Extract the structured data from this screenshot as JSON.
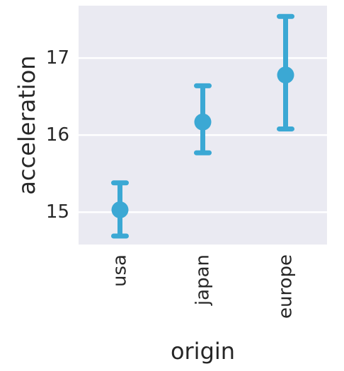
{
  "chart_data": {
    "type": "pointplot",
    "xlabel": "origin",
    "ylabel": "acceleration",
    "categories": [
      "usa",
      "japan",
      "europe"
    ],
    "series": [
      {
        "values": [
          15.03,
          16.17,
          16.78
        ],
        "ci_low": [
          14.69,
          15.77,
          16.08
        ],
        "ci_high": [
          15.38,
          16.64,
          17.54
        ]
      }
    ],
    "ylim": [
      14.58,
      17.68
    ],
    "yticks": [
      15,
      16,
      17
    ],
    "ytick_labels": [
      "15",
      "16",
      "17"
    ],
    "grid": true,
    "colors": {
      "plot_background": "#eaeaf2",
      "grid": "#ffffff",
      "series": "#3ba8d4",
      "text": "#262626"
    }
  }
}
